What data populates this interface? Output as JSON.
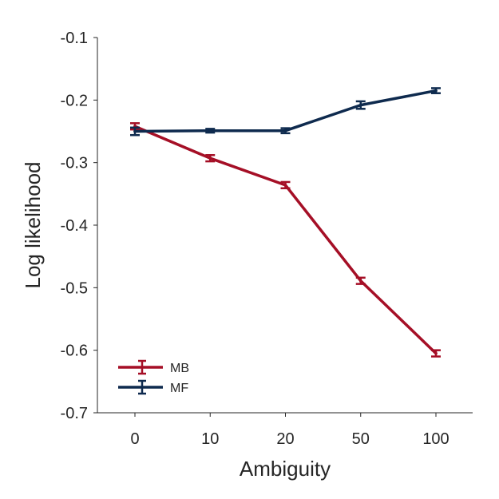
{
  "chart_data": {
    "type": "line",
    "title": "",
    "xlabel": "Ambiguity",
    "ylabel": "Log likelihood",
    "categories": [
      "0",
      "10",
      "20",
      "50",
      "100"
    ],
    "ylim": [
      -0.7,
      -0.1
    ],
    "yticks": [
      "-0.1",
      "-0.2",
      "-0.3",
      "-0.4",
      "-0.5",
      "-0.6",
      "-0.7"
    ],
    "ytick_values": [
      -0.1,
      -0.2,
      -0.3,
      -0.4,
      -0.5,
      -0.6,
      -0.7
    ],
    "grid": false,
    "legend_position": "bottom-left",
    "series": [
      {
        "name": "MB",
        "color": "#a50f26",
        "values": [
          -0.242,
          -0.293,
          -0.336,
          -0.489,
          -0.605
        ],
        "errors": [
          0.005,
          0.005,
          0.005,
          0.005,
          0.005
        ]
      },
      {
        "name": "MF",
        "color": "#0e2a4e",
        "values": [
          -0.25,
          -0.249,
          -0.249,
          -0.208,
          -0.185
        ],
        "errors": [
          0.006,
          0.003,
          0.004,
          0.006,
          0.004
        ]
      }
    ]
  }
}
